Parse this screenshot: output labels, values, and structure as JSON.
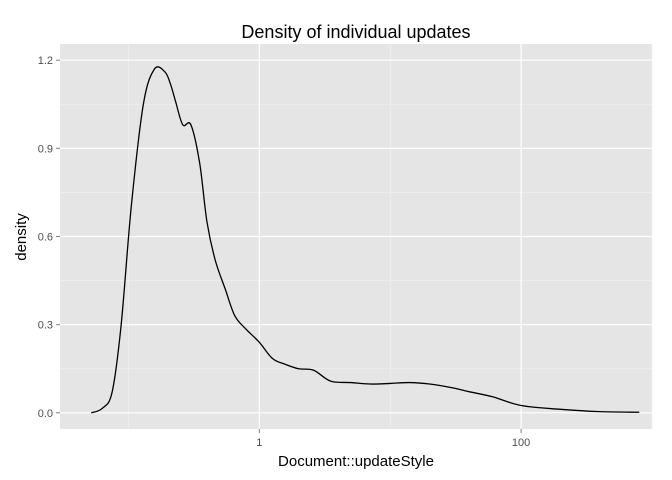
{
  "chart_data": {
    "type": "line",
    "title": "Density of individual updates",
    "xlabel": "Document::updateStyle",
    "ylabel": "density",
    "x_scale": "log10",
    "xlim": [
      0.03,
      1000
    ],
    "ylim": [
      -0.055,
      1.255
    ],
    "x_ticks": [
      {
        "value": 1,
        "label": "1"
      },
      {
        "value": 100,
        "label": "100"
      }
    ],
    "y_ticks": [
      {
        "value": 0.0,
        "label": "0.0"
      },
      {
        "value": 0.3,
        "label": "0.3"
      },
      {
        "value": 0.6,
        "label": "0.6"
      },
      {
        "value": 0.9,
        "label": "0.9"
      },
      {
        "value": 1.2,
        "label": "1.2"
      }
    ],
    "grid": true,
    "panel_background": "#e5e5e5",
    "grid_color": "#ffffff",
    "line_color": "#000000",
    "series": [
      {
        "x": [
          0.052,
          0.063,
          0.075,
          0.088,
          0.105,
          0.13,
          0.158,
          0.19,
          0.209,
          0.229,
          0.26,
          0.3,
          0.35,
          0.398,
          0.46,
          0.55,
          0.65,
          0.79,
          1.0,
          1.26,
          1.58,
          2.0,
          2.6,
          3.5,
          5.0,
          7.0,
          10.0,
          14.0,
          20.0,
          30.0,
          40.0,
          60.0,
          100.0,
          200.0,
          400.0,
          800.0
        ],
        "y": [
          0.0,
          0.015,
          0.07,
          0.3,
          0.7,
          1.05,
          1.17,
          1.16,
          1.12,
          1.06,
          0.98,
          0.98,
          0.85,
          0.65,
          0.52,
          0.42,
          0.33,
          0.285,
          0.24,
          0.185,
          0.165,
          0.15,
          0.145,
          0.108,
          0.103,
          0.098,
          0.1,
          0.103,
          0.098,
          0.085,
          0.072,
          0.055,
          0.025,
          0.012,
          0.004,
          0.002
        ]
      }
    ]
  }
}
